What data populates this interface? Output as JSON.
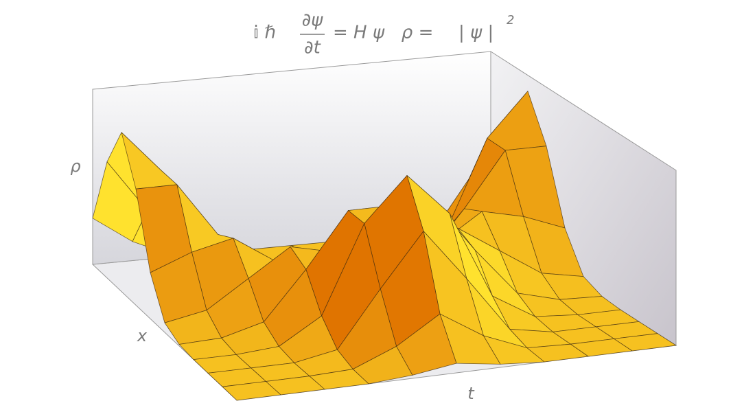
{
  "chart_data": {
    "type": "surface",
    "title": {
      "prefix": "𝕚 ℏ",
      "numerator": "∂ψ",
      "denominator": "∂t",
      "middle": "= H ψ   ρ =",
      "abs": "| ψ |",
      "exponent": "2"
    },
    "xlabel": "x",
    "tlabel": "t",
    "zlabel": "ρ",
    "t": [
      0,
      0.1,
      0.2,
      0.3,
      0.4,
      0.5,
      0.6,
      0.7,
      0.8,
      0.9,
      1
    ],
    "x": [
      0,
      0.1,
      0.2,
      0.3,
      0.4,
      0.5,
      0.6,
      0.7,
      0.8,
      0.9,
      1
    ],
    "z": [
      [
        0,
        0,
        0,
        0,
        0.01,
        0.06,
        0.29,
        0.73,
        1,
        0.73,
        0.29
      ],
      [
        0,
        0,
        0,
        0,
        0.02,
        0.11,
        0.39,
        0.73,
        0.73,
        0.4,
        0.12
      ],
      [
        0,
        0,
        0,
        0.02,
        0.09,
        0.28,
        0.45,
        0.39,
        0.18,
        0.05,
        0.01
      ],
      [
        0,
        0.01,
        0.05,
        0.18,
        0.39,
        0.45,
        0.28,
        0.09,
        0.02,
        0,
        0
      ],
      [
        0.02,
        0.12,
        0.4,
        0.73,
        0.73,
        0.39,
        0.11,
        0.02,
        0,
        0,
        0
      ],
      [
        0.06,
        0.29,
        0.73,
        1,
        0.73,
        0.29,
        0.06,
        0.01,
        0,
        0,
        0
      ],
      [
        0.02,
        0.12,
        0.4,
        0.73,
        0.73,
        0.39,
        0.11,
        0.02,
        0,
        0,
        0
      ],
      [
        0,
        0.01,
        0.05,
        0.18,
        0.39,
        0.45,
        0.28,
        0.09,
        0.02,
        0,
        0
      ],
      [
        0,
        0,
        0,
        0.02,
        0.09,
        0.28,
        0.45,
        0.39,
        0.18,
        0.05,
        0.01
      ],
      [
        0,
        0,
        0,
        0,
        0.02,
        0.11,
        0.39,
        0.73,
        0.73,
        0.4,
        0.12
      ],
      [
        0,
        0,
        0,
        0,
        0.01,
        0.06,
        0.29,
        0.73,
        1,
        0.73,
        0.29
      ]
    ],
    "zlim": [
      0,
      1.1
    ],
    "colors": {
      "low": "#e07400",
      "high": "#ffe22e",
      "mesh": "#3a2810"
    }
  }
}
